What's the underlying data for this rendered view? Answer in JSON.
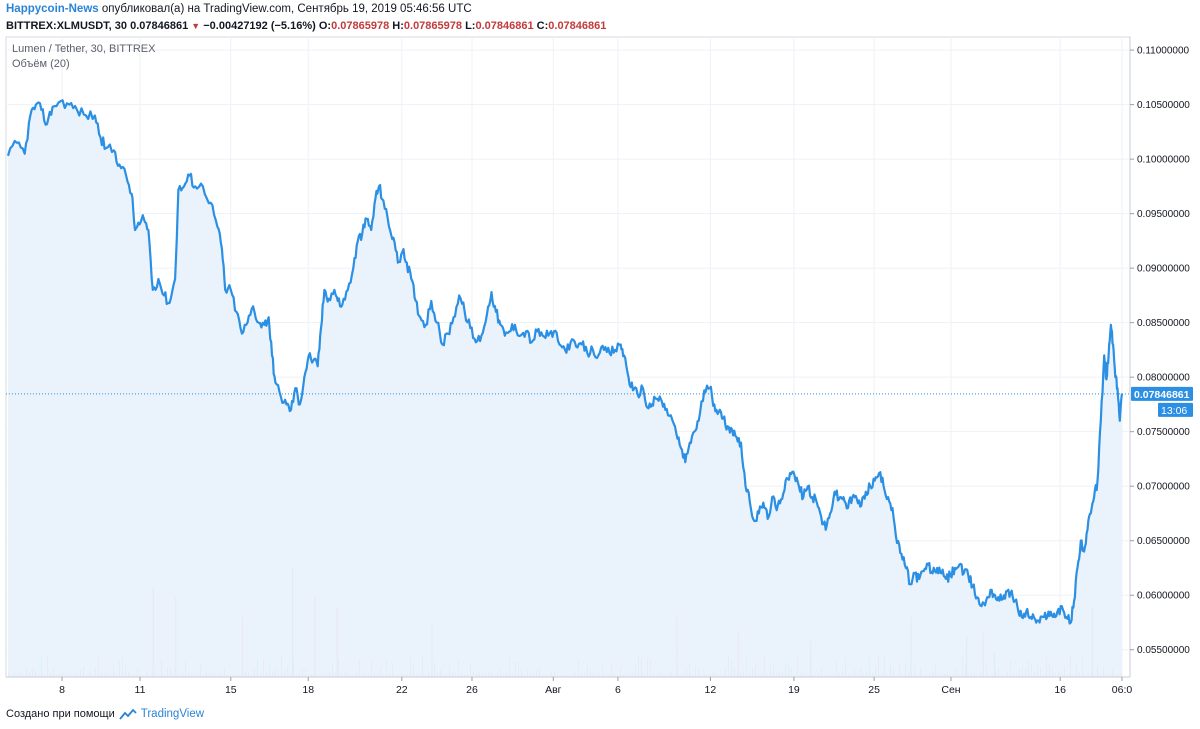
{
  "header": {
    "author": "Happycoin-News",
    "published_text": "опубликовал(а) на TradingView.com, Сентябрь 19, 2019 05:46:56 UTC",
    "symbol_interval": "BITTREX:XLMUSDT, 30",
    "last_price": "0.07846861",
    "change_arrow": "▼",
    "change": "−0.00427192 (−5.16%)",
    "ohlc": [
      {
        "label": "O:",
        "value": "0.07865978"
      },
      {
        "label": "H:",
        "value": "0.07865978"
      },
      {
        "label": "L:",
        "value": "0.07846861"
      },
      {
        "label": "C:",
        "value": "0.07846861"
      }
    ]
  },
  "legend": {
    "main": "Lumen / Tether, 30, BITTREX",
    "volume": "Объём (20)"
  },
  "price_label": "0.07846861",
  "time_label": "13:06",
  "footer": {
    "created_with": "Создано при помощи",
    "brand": "TradingView"
  },
  "colors": {
    "line": "#2b8fe3",
    "area": "#e8f1fb",
    "price_tag": "#2b8fe3",
    "volume_up": "#7ad0c1",
    "volume_down": "#f0a0a0",
    "grid": "#eef1f6",
    "negative": "#c23b3b"
  },
  "chart_data": {
    "type": "area",
    "ylim": [
      0.0525,
      0.1112
    ],
    "y_ticks": [
      "0.11000000",
      "0.10500000",
      "0.10000000",
      "0.09500000",
      "0.09000000",
      "0.08500000",
      "0.08000000",
      "0.07500000",
      "0.07000000",
      "0.06500000",
      "0.06000000",
      "0.05500000"
    ],
    "y_tick_values": [
      0.11,
      0.105,
      0.1,
      0.095,
      0.09,
      0.085,
      0.08,
      0.075,
      0.07,
      0.065,
      0.06,
      0.055
    ],
    "x_ticks": [
      {
        "label": "8",
        "t": 0.0485
      },
      {
        "label": "11",
        "t": 0.1185
      },
      {
        "label": "15",
        "t": 0.2
      },
      {
        "label": "18",
        "t": 0.2695
      },
      {
        "label": "22",
        "t": 0.3535
      },
      {
        "label": "26",
        "t": 0.4165
      },
      {
        "label": "Авг",
        "t": 0.4895
      },
      {
        "label": "6",
        "t": 0.5475
      },
      {
        "label": "12",
        "t": 0.6305
      },
      {
        "label": "19",
        "t": 0.7055
      },
      {
        "label": "25",
        "t": 0.7775
      },
      {
        "label": "Сен",
        "t": 0.8465
      },
      {
        "label": "16",
        "t": 0.9445
      },
      {
        "label": "06:0",
        "t": 1.0
      }
    ],
    "series": [
      {
        "points": [
          [
            0.0,
            0.1003
          ],
          [
            0.008,
            0.1015
          ],
          [
            0.015,
            0.1005
          ],
          [
            0.02,
            0.104
          ],
          [
            0.025,
            0.105
          ],
          [
            0.03,
            0.1045
          ],
          [
            0.035,
            0.1032
          ],
          [
            0.04,
            0.1048
          ],
          [
            0.047,
            0.1053
          ],
          [
            0.055,
            0.105
          ],
          [
            0.062,
            0.1045
          ],
          [
            0.07,
            0.104
          ],
          [
            0.078,
            0.104
          ],
          [
            0.083,
            0.102
          ],
          [
            0.088,
            0.101
          ],
          [
            0.095,
            0.1008
          ],
          [
            0.1,
            0.0995
          ],
          [
            0.106,
            0.0985
          ],
          [
            0.111,
            0.0968
          ],
          [
            0.114,
            0.0935
          ],
          [
            0.118,
            0.094
          ],
          [
            0.122,
            0.0945
          ],
          [
            0.126,
            0.0935
          ],
          [
            0.13,
            0.088
          ],
          [
            0.135,
            0.089
          ],
          [
            0.14,
            0.0875
          ],
          [
            0.145,
            0.0868
          ],
          [
            0.15,
            0.089
          ],
          [
            0.153,
            0.0972
          ],
          [
            0.158,
            0.0975
          ],
          [
            0.163,
            0.0985
          ],
          [
            0.168,
            0.0975
          ],
          [
            0.175,
            0.0975
          ],
          [
            0.182,
            0.096
          ],
          [
            0.188,
            0.0938
          ],
          [
            0.192,
            0.0918
          ],
          [
            0.195,
            0.088
          ],
          [
            0.2,
            0.088
          ],
          [
            0.205,
            0.086
          ],
          [
            0.21,
            0.084
          ],
          [
            0.215,
            0.085
          ],
          [
            0.22,
            0.0865
          ],
          [
            0.225,
            0.085
          ],
          [
            0.23,
            0.0848
          ],
          [
            0.234,
            0.0855
          ],
          [
            0.237,
            0.082
          ],
          [
            0.24,
            0.0795
          ],
          [
            0.245,
            0.0782
          ],
          [
            0.25,
            0.0775
          ],
          [
            0.254,
            0.077
          ],
          [
            0.258,
            0.079
          ],
          [
            0.262,
            0.0775
          ],
          [
            0.266,
            0.08
          ],
          [
            0.27,
            0.082
          ],
          [
            0.274,
            0.0815
          ],
          [
            0.278,
            0.081
          ],
          [
            0.281,
            0.0845
          ],
          [
            0.284,
            0.088
          ],
          [
            0.288,
            0.0872
          ],
          [
            0.293,
            0.088
          ],
          [
            0.296,
            0.087
          ],
          [
            0.3,
            0.0866
          ],
          [
            0.305,
            0.088
          ],
          [
            0.31,
            0.09
          ],
          [
            0.314,
            0.0925
          ],
          [
            0.318,
            0.0932
          ],
          [
            0.322,
            0.0945
          ],
          [
            0.326,
            0.0935
          ],
          [
            0.33,
            0.0965
          ],
          [
            0.333,
            0.0975
          ],
          [
            0.337,
            0.0962
          ],
          [
            0.342,
            0.0938
          ],
          [
            0.346,
            0.0928
          ],
          [
            0.35,
            0.0905
          ],
          [
            0.354,
            0.0915
          ],
          [
            0.358,
            0.0905
          ],
          [
            0.362,
            0.089
          ],
          [
            0.366,
            0.087
          ],
          [
            0.37,
            0.0855
          ],
          [
            0.375,
            0.0848
          ],
          [
            0.38,
            0.087
          ],
          [
            0.385,
            0.085
          ],
          [
            0.39,
            0.083
          ],
          [
            0.395,
            0.084
          ],
          [
            0.4,
            0.0855
          ],
          [
            0.405,
            0.0875
          ],
          [
            0.41,
            0.086
          ],
          [
            0.415,
            0.0845
          ],
          [
            0.42,
            0.0832
          ],
          [
            0.425,
            0.0838
          ],
          [
            0.43,
            0.0858
          ],
          [
            0.434,
            0.0878
          ],
          [
            0.438,
            0.086
          ],
          [
            0.442,
            0.0848
          ],
          [
            0.446,
            0.0838
          ],
          [
            0.45,
            0.0842
          ],
          [
            0.455,
            0.0848
          ],
          [
            0.46,
            0.0838
          ],
          [
            0.465,
            0.0842
          ],
          [
            0.47,
            0.0832
          ],
          [
            0.475,
            0.0842
          ],
          [
            0.48,
            0.0838
          ],
          [
            0.485,
            0.0838
          ],
          [
            0.49,
            0.0842
          ],
          [
            0.495,
            0.083
          ],
          [
            0.5,
            0.0825
          ],
          [
            0.505,
            0.0832
          ],
          [
            0.51,
            0.0828
          ],
          [
            0.515,
            0.083
          ],
          [
            0.52,
            0.0822
          ],
          [
            0.525,
            0.0825
          ],
          [
            0.53,
            0.082
          ],
          [
            0.535,
            0.0825
          ],
          [
            0.54,
            0.0822
          ],
          [
            0.545,
            0.0825
          ],
          [
            0.55,
            0.083
          ],
          [
            0.553,
            0.082
          ],
          [
            0.557,
            0.08
          ],
          [
            0.561,
            0.0788
          ],
          [
            0.565,
            0.0785
          ],
          [
            0.57,
            0.079
          ],
          [
            0.574,
            0.0772
          ],
          [
            0.578,
            0.0775
          ],
          [
            0.582,
            0.078
          ],
          [
            0.586,
            0.078
          ],
          [
            0.59,
            0.077
          ],
          [
            0.595,
            0.0765
          ],
          [
            0.6,
            0.0748
          ],
          [
            0.604,
            0.0735
          ],
          [
            0.608,
            0.0722
          ],
          [
            0.612,
            0.074
          ],
          [
            0.616,
            0.075
          ],
          [
            0.62,
            0.076
          ],
          [
            0.625,
            0.0788
          ],
          [
            0.63,
            0.079
          ],
          [
            0.634,
            0.0775
          ],
          [
            0.638,
            0.0768
          ],
          [
            0.642,
            0.0762
          ],
          [
            0.646,
            0.0755
          ],
          [
            0.65,
            0.0752
          ],
          [
            0.654,
            0.0745
          ],
          [
            0.658,
            0.074
          ],
          [
            0.662,
            0.07
          ],
          [
            0.666,
            0.0685
          ],
          [
            0.67,
            0.0668
          ],
          [
            0.674,
            0.0675
          ],
          [
            0.678,
            0.0685
          ],
          [
            0.682,
            0.067
          ],
          [
            0.686,
            0.069
          ],
          [
            0.69,
            0.0678
          ],
          [
            0.694,
            0.0688
          ],
          [
            0.698,
            0.0705
          ],
          [
            0.702,
            0.0712
          ],
          [
            0.706,
            0.071
          ],
          [
            0.71,
            0.07
          ],
          [
            0.714,
            0.069
          ],
          [
            0.718,
            0.07
          ],
          [
            0.722,
            0.069
          ],
          [
            0.726,
            0.0685
          ],
          [
            0.73,
            0.0672
          ],
          [
            0.734,
            0.066
          ],
          [
            0.738,
            0.0675
          ],
          [
            0.742,
            0.0695
          ],
          [
            0.746,
            0.0688
          ],
          [
            0.75,
            0.069
          ],
          [
            0.754,
            0.068
          ],
          [
            0.758,
            0.069
          ],
          [
            0.762,
            0.0688
          ],
          [
            0.766,
            0.0682
          ],
          [
            0.77,
            0.0695
          ],
          [
            0.774,
            0.07
          ],
          [
            0.778,
            0.0705
          ],
          [
            0.782,
            0.0712
          ],
          [
            0.786,
            0.07
          ],
          [
            0.79,
            0.069
          ],
          [
            0.794,
            0.068
          ],
          [
            0.798,
            0.0648
          ],
          [
            0.802,
            0.0638
          ],
          [
            0.806,
            0.0625
          ],
          [
            0.81,
            0.061
          ],
          [
            0.814,
            0.062
          ],
          [
            0.818,
            0.0615
          ],
          [
            0.822,
            0.0622
          ],
          [
            0.826,
            0.0628
          ],
          [
            0.83,
            0.062
          ],
          [
            0.834,
            0.0625
          ],
          [
            0.838,
            0.062
          ],
          [
            0.842,
            0.0615
          ],
          [
            0.846,
            0.0618
          ],
          [
            0.85,
            0.0625
          ],
          [
            0.854,
            0.0628
          ],
          [
            0.858,
            0.062
          ],
          [
            0.862,
            0.0618
          ],
          [
            0.866,
            0.0608
          ],
          [
            0.87,
            0.0598
          ],
          [
            0.874,
            0.059
          ],
          [
            0.878,
            0.0595
          ],
          [
            0.882,
            0.0605
          ],
          [
            0.886,
            0.06
          ],
          [
            0.89,
            0.0595
          ],
          [
            0.894,
            0.06
          ],
          [
            0.898,
            0.0605
          ],
          [
            0.902,
            0.0598
          ],
          [
            0.906,
            0.059
          ],
          [
            0.91,
            0.058
          ],
          [
            0.914,
            0.0585
          ],
          [
            0.918,
            0.058
          ],
          [
            0.922,
            0.0578
          ],
          [
            0.926,
            0.0575
          ],
          [
            0.93,
            0.058
          ],
          [
            0.934,
            0.0585
          ],
          [
            0.938,
            0.058
          ],
          [
            0.942,
            0.0585
          ],
          [
            0.946,
            0.059
          ],
          [
            0.95,
            0.058
          ],
          [
            0.954,
            0.0575
          ],
          [
            0.957,
            0.0595
          ],
          [
            0.96,
            0.0625
          ],
          [
            0.963,
            0.065
          ],
          [
            0.966,
            0.064
          ],
          [
            0.969,
            0.066
          ],
          [
            0.972,
            0.0675
          ],
          [
            0.975,
            0.069
          ],
          [
            0.978,
            0.0705
          ],
          [
            0.981,
            0.076
          ],
          [
            0.984,
            0.082
          ],
          [
            0.986,
            0.0798
          ],
          [
            0.988,
            0.082
          ],
          [
            0.99,
            0.0848
          ],
          [
            0.992,
            0.083
          ],
          [
            0.994,
            0.08
          ],
          [
            0.996,
            0.079
          ],
          [
            0.998,
            0.076
          ],
          [
            1.0,
            0.0785
          ]
        ]
      }
    ],
    "volume_spikes_up": [
      [
        0.255,
        0.55
      ],
      [
        0.38,
        0.25
      ],
      [
        0.72,
        0.18
      ],
      [
        0.81,
        0.3
      ],
      [
        0.86,
        0.2
      ],
      [
        0.885,
        0.12
      ],
      [
        0.973,
        0.35
      ]
    ],
    "volume_spikes_down": [
      [
        0.13,
        0.45
      ],
      [
        0.15,
        0.4
      ],
      [
        0.21,
        0.3
      ],
      [
        0.275,
        0.4
      ],
      [
        0.295,
        0.35
      ],
      [
        0.6,
        0.3
      ],
      [
        0.655,
        0.22
      ],
      [
        0.875,
        0.22
      ]
    ]
  }
}
